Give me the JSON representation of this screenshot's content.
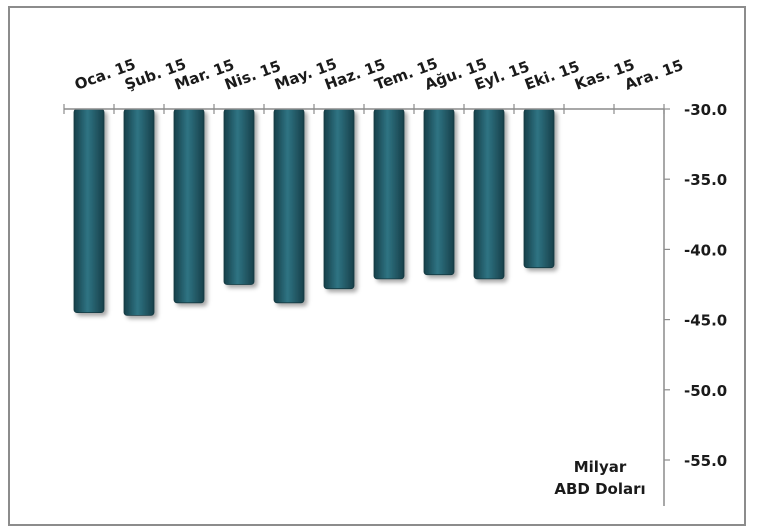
{
  "chart_data": {
    "type": "bar",
    "categories": [
      "Oca. 15",
      "Şub. 15",
      "Mar. 15",
      "Nis. 15",
      "May. 15",
      "Haz. 15",
      "Tem. 15",
      "Ağu. 15",
      "Eyl. 15",
      "Eki. 15",
      "Kas. 15",
      "Ara. 15"
    ],
    "values": [
      -44.5,
      -44.7,
      -43.8,
      -42.5,
      -43.8,
      -42.8,
      -42.1,
      -41.8,
      -42.1,
      -41.3,
      null,
      null
    ],
    "yticks": [
      "-30.0",
      "-35.0",
      "-40.0",
      "-45.0",
      "-50.0",
      "-55.0"
    ],
    "ylim": [
      -55,
      -30
    ],
    "unit_label": [
      "Milyar",
      "ABD Doları"
    ],
    "axis_position": "right",
    "x_axis_position": "top",
    "grid": false,
    "legend": "none",
    "bar_color": "#215f6d"
  }
}
